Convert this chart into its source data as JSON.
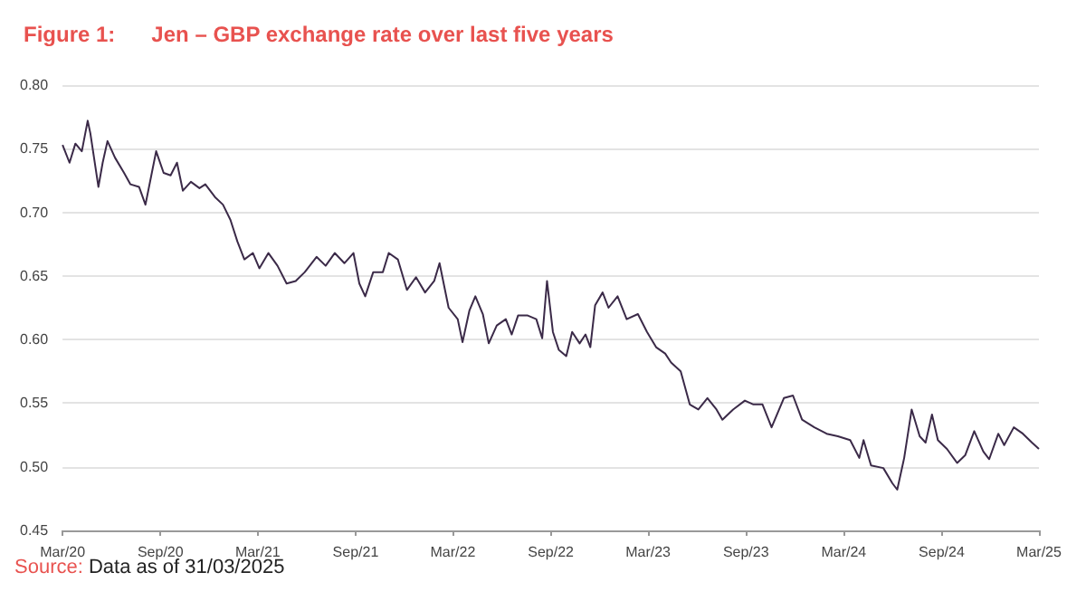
{
  "chart_data": {
    "type": "line",
    "title": "Figure 1:      Jen – GBP exchange rate over last five years",
    "annotations": [
      "Source: Data as of 31/03/2025"
    ],
    "x": [
      "2020-03-31",
      "2020-04-13",
      "2020-04-24",
      "2020-05-06",
      "2020-05-17",
      "2020-05-22",
      "2020-06-06",
      "2020-06-14",
      "2020-06-23",
      "2020-07-07",
      "2020-07-24",
      "2020-08-05",
      "2020-08-21",
      "2020-09-02",
      "2020-09-13",
      "2020-09-22",
      "2020-10-06",
      "2020-10-19",
      "2020-10-31",
      "2020-11-11",
      "2020-11-26",
      "2020-12-12",
      "2020-12-23",
      "2021-01-10",
      "2021-01-25",
      "2021-02-08",
      "2021-02-21",
      "2021-03-06",
      "2021-03-22",
      "2021-04-03",
      "2021-04-20",
      "2021-05-07",
      "2021-05-24",
      "2021-06-10",
      "2021-06-27",
      "2021-07-19",
      "2021-08-05",
      "2021-08-22",
      "2021-09-09",
      "2021-09-26",
      "2021-10-07",
      "2021-10-18",
      "2021-11-02",
      "2021-11-20",
      "2021-12-01",
      "2021-12-18",
      "2022-01-04",
      "2022-01-21",
      "2022-02-07",
      "2022-02-24",
      "2022-03-06",
      "2022-03-23",
      "2022-04-09",
      "2022-04-18",
      "2022-05-01",
      "2022-05-12",
      "2022-05-26",
      "2022-06-06",
      "2022-06-21",
      "2022-07-08",
      "2022-07-19",
      "2022-07-31",
      "2022-08-17",
      "2022-09-03",
      "2022-09-14",
      "2022-09-23",
      "2022-10-04",
      "2022-10-15",
      "2022-10-29",
      "2022-11-09",
      "2022-11-23",
      "2022-12-04",
      "2022-12-13",
      "2022-12-22",
      "2023-01-05",
      "2023-01-16",
      "2023-02-02",
      "2023-02-19",
      "2023-03-12",
      "2023-03-29",
      "2023-04-15",
      "2023-05-02",
      "2023-05-13",
      "2023-05-31",
      "2023-06-17",
      "2023-07-03",
      "2023-07-20",
      "2023-08-06",
      "2023-08-17",
      "2023-09-06",
      "2023-09-28",
      "2023-10-14",
      "2023-10-31",
      "2023-11-17",
      "2023-12-10",
      "2023-12-27",
      "2024-01-13",
      "2024-02-05",
      "2024-02-28",
      "2024-03-20",
      "2024-04-12",
      "2024-04-29",
      "2024-05-07",
      "2024-05-21",
      "2024-06-13",
      "2024-06-30",
      "2024-07-09",
      "2024-07-22",
      "2024-08-05",
      "2024-08-20",
      "2024-08-31",
      "2024-09-12",
      "2024-09-23",
      "2024-10-10",
      "2024-10-29",
      "2024-11-13",
      "2024-11-30",
      "2024-12-17",
      "2024-12-28",
      "2025-01-14",
      "2025-01-25",
      "2025-02-12",
      "2025-03-01",
      "2025-03-18",
      "2025-03-31"
    ],
    "series": [
      {
        "color": "#3b2a48",
        "values": [
          0.753,
          0.739,
          0.754,
          0.748,
          0.772,
          0.762,
          0.72,
          0.739,
          0.756,
          0.743,
          0.731,
          0.722,
          0.72,
          0.706,
          0.729,
          0.748,
          0.731,
          0.729,
          0.739,
          0.717,
          0.724,
          0.719,
          0.722,
          0.712,
          0.706,
          0.694,
          0.677,
          0.663,
          0.668,
          0.656,
          0.668,
          0.658,
          0.644,
          0.646,
          0.653,
          0.665,
          0.658,
          0.668,
          0.66,
          0.668,
          0.644,
          0.634,
          0.653,
          0.653,
          0.668,
          0.663,
          0.639,
          0.649,
          0.637,
          0.646,
          0.66,
          0.625,
          0.616,
          0.598,
          0.623,
          0.634,
          0.62,
          0.597,
          0.611,
          0.616,
          0.604,
          0.619,
          0.619,
          0.616,
          0.601,
          0.646,
          0.606,
          0.592,
          0.587,
          0.606,
          0.597,
          0.604,
          0.594,
          0.627,
          0.637,
          0.625,
          0.634,
          0.616,
          0.62,
          0.606,
          0.594,
          0.589,
          0.582,
          0.575,
          0.549,
          0.545,
          0.554,
          0.545,
          0.537,
          0.545,
          0.552,
          0.549,
          0.549,
          0.531,
          0.554,
          0.556,
          0.537,
          0.531,
          0.526,
          0.524,
          0.521,
          0.507,
          0.521,
          0.501,
          0.499,
          0.487,
          0.482,
          0.507,
          0.545,
          0.524,
          0.519,
          0.541,
          0.521,
          0.514,
          0.503,
          0.509,
          0.528,
          0.512,
          0.506,
          0.526,
          0.517,
          0.531,
          0.526,
          0.519,
          0.514
        ]
      }
    ],
    "xlim": [
      "2020-03-31",
      "2025-03-31"
    ],
    "xticks": [
      {
        "value": "2020-03-31",
        "label": "Mar/20"
      },
      {
        "value": "2020-09-30",
        "label": "Sep/20"
      },
      {
        "value": "2021-03-31",
        "label": "Mar/21"
      },
      {
        "value": "2021-09-30",
        "label": "Sep/21"
      },
      {
        "value": "2022-03-31",
        "label": "Mar/22"
      },
      {
        "value": "2022-09-30",
        "label": "Sep/22"
      },
      {
        "value": "2023-03-31",
        "label": "Mar/23"
      },
      {
        "value": "2023-09-30",
        "label": "Sep/23"
      },
      {
        "value": "2024-03-31",
        "label": "Mar/24"
      },
      {
        "value": "2024-09-30",
        "label": "Sep/24"
      },
      {
        "value": "2025-03-31",
        "label": "Mar/25"
      }
    ],
    "ylim": [
      0.45,
      0.8
    ],
    "yticks": [
      {
        "value": 0.45,
        "label": "0.45"
      },
      {
        "value": 0.5,
        "label": "0.50"
      },
      {
        "value": 0.55,
        "label": "0.55"
      },
      {
        "value": 0.6,
        "label": "0.60"
      },
      {
        "value": 0.65,
        "label": "0.65"
      },
      {
        "value": 0.7,
        "label": "0.70"
      },
      {
        "value": 0.75,
        "label": "0.75"
      },
      {
        "value": 0.8,
        "label": "0.80"
      }
    ],
    "grid": "y",
    "marker": "none",
    "line_style": "solid"
  }
}
